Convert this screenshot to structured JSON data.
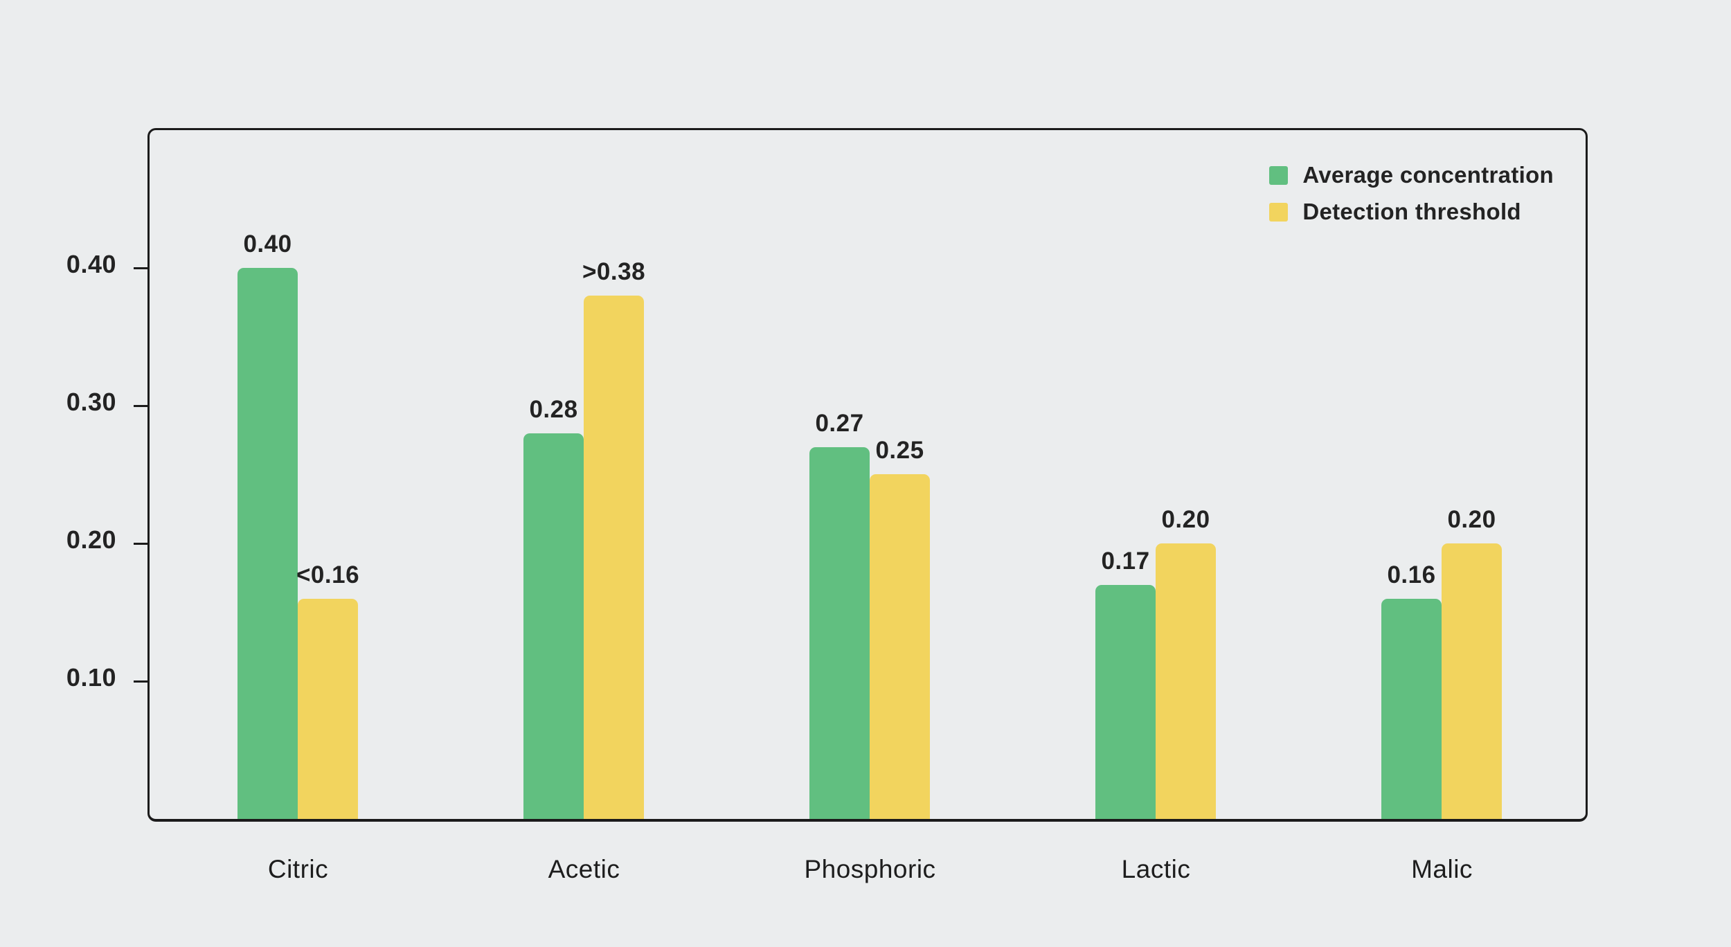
{
  "colors": {
    "background": "#ebedee",
    "frame_border": "#1b1b1b",
    "text": "#232323",
    "series_green": "#61bf80",
    "series_yellow": "#f2d45e"
  },
  "legend": {
    "items": [
      {
        "label": "Average concentration",
        "color": "#61bf80"
      },
      {
        "label": "Detection threshold",
        "color": "#f2d45e"
      }
    ]
  },
  "chart_data": {
    "type": "bar",
    "title": "",
    "categories": [
      "Citric",
      "Acetic",
      "Phosphoric",
      "Lactic",
      "Malic"
    ],
    "series": [
      {
        "name": "Average concentration",
        "color": "#61bf80",
        "values": [
          0.4,
          0.28,
          0.27,
          0.17,
          0.16
        ],
        "labels": [
          "0.40",
          "0.28",
          "0.27",
          "0.17",
          "0.16"
        ]
      },
      {
        "name": "Detection threshold",
        "color": "#f2d45e",
        "values": [
          0.16,
          0.38,
          0.25,
          0.2,
          0.2
        ],
        "labels": [
          "<0.16",
          ">0.38",
          "0.25",
          "0.20",
          "0.20"
        ]
      }
    ],
    "yticks": [
      0.1,
      0.2,
      0.3,
      0.4
    ],
    "ytick_labels": [
      "0.10",
      "0.20",
      "0.30",
      "0.40"
    ],
    "ylim": [
      0,
      0.5
    ],
    "xlabel": "",
    "ylabel": "",
    "grid": false,
    "legend_position": "top-right"
  }
}
